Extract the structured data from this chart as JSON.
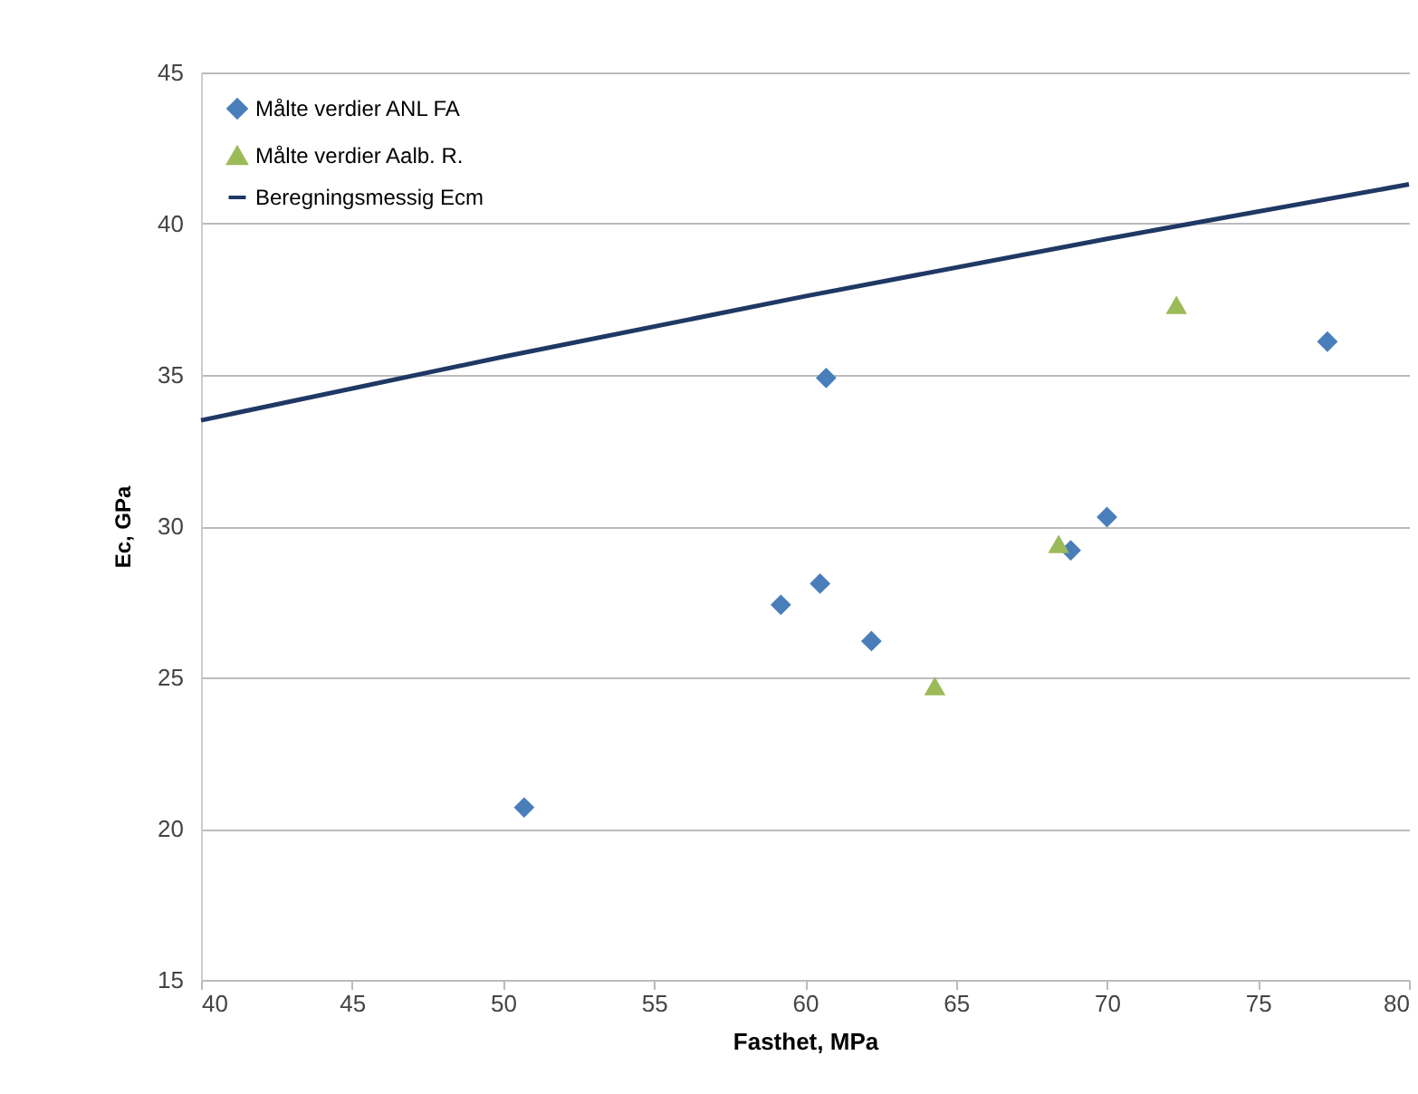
{
  "chart_data": {
    "type": "scatter",
    "xlabel": "Fasthet, MPa",
    "ylabel": "Ec, GPa",
    "xlim": [
      40,
      80
    ],
    "xticks": [
      40,
      45,
      50,
      55,
      60,
      65,
      70,
      75,
      80
    ],
    "ylim": [
      15,
      45
    ],
    "yticks": [
      15,
      20,
      25,
      30,
      35,
      40,
      45
    ],
    "grid": "y",
    "legend": "top left",
    "series": [
      {
        "name": "Målte verdier ANL FA",
        "color": "#4a7ebb",
        "marker": "diamond",
        "x": [
          50.7,
          59.2,
          60.5,
          60.7,
          62.2,
          68.8,
          70.0,
          77.3
        ],
        "values": [
          20.7,
          27.4,
          28.1,
          34.9,
          26.2,
          29.2,
          30.3,
          36.1
        ]
      },
      {
        "name": "Målte verdier Aalb. R.",
        "color": "#9bbb59",
        "marker": "triangle",
        "x": [
          64.3,
          68.4,
          72.3
        ],
        "values": [
          24.7,
          29.4,
          37.3
        ]
      },
      {
        "name": "Beregningsmessig Ecm",
        "type": "line",
        "color": "#1f3864",
        "marker": "none",
        "line_style": "solid",
        "x": [
          40,
          50,
          60,
          70,
          80
        ],
        "values": [
          33.5,
          35.6,
          37.6,
          39.5,
          41.3
        ]
      }
    ]
  }
}
